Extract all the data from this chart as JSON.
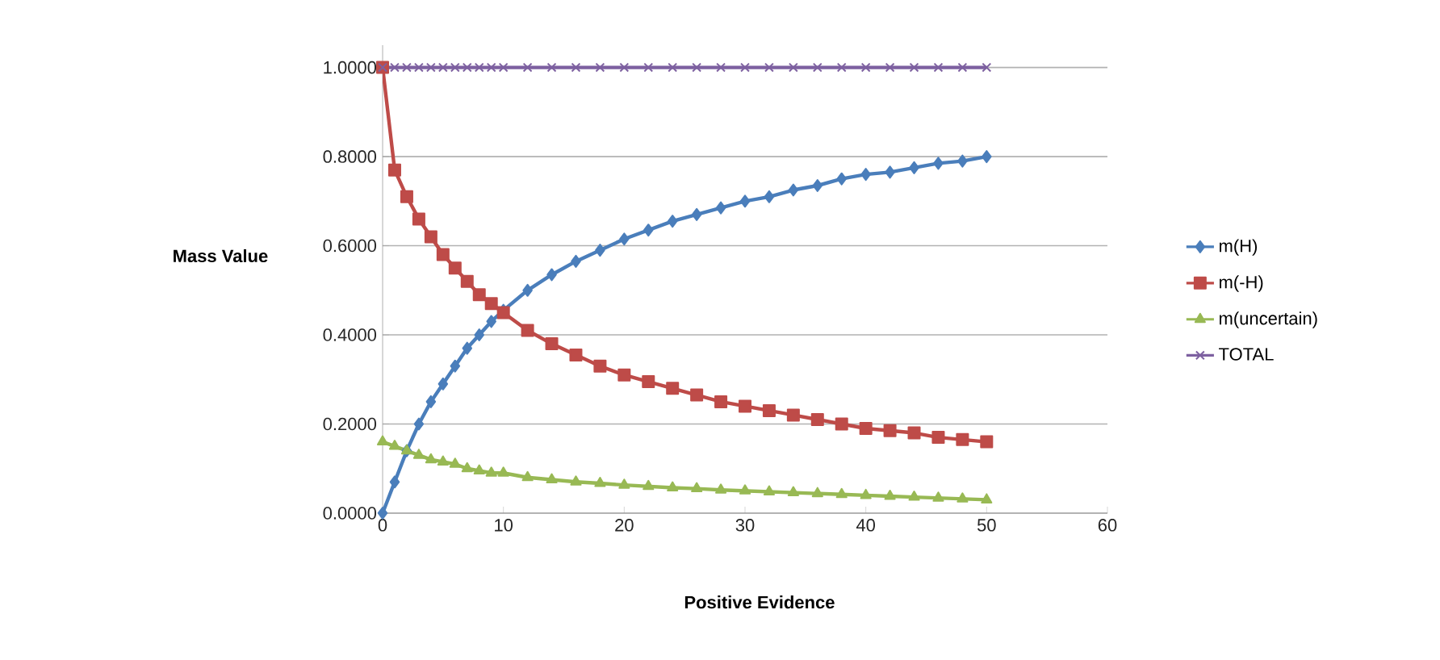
{
  "chart_data": {
    "type": "line",
    "xlabel": "Positive Evidence",
    "ylabel": "Mass Value",
    "x": [
      0,
      1,
      2,
      3,
      4,
      5,
      6,
      7,
      8,
      9,
      10,
      12,
      14,
      16,
      18,
      20,
      22,
      24,
      26,
      28,
      30,
      32,
      34,
      36,
      38,
      40,
      42,
      44,
      46,
      48,
      50
    ],
    "series": [
      {
        "name": "m(H)",
        "color": "#4a7ebb",
        "marker": "diamond",
        "values": [
          0,
          0.07,
          0.14,
          0.2,
          0.25,
          0.29,
          0.33,
          0.37,
          0.4,
          0.43,
          0.455,
          0.5,
          0.535,
          0.565,
          0.59,
          0.615,
          0.635,
          0.655,
          0.67,
          0.685,
          0.7,
          0.71,
          0.725,
          0.735,
          0.75,
          0.76,
          0.765,
          0.775,
          0.785,
          0.79,
          0.8
        ]
      },
      {
        "name": "m(-H)",
        "color": "#be4b48",
        "marker": "square",
        "values": [
          1,
          0.77,
          0.71,
          0.66,
          0.62,
          0.58,
          0.55,
          0.52,
          0.49,
          0.47,
          0.45,
          0.41,
          0.38,
          0.355,
          0.33,
          0.31,
          0.295,
          0.28,
          0.265,
          0.25,
          0.24,
          0.23,
          0.22,
          0.21,
          0.2,
          0.19,
          0.185,
          0.18,
          0.17,
          0.165,
          0.16
        ]
      },
      {
        "name": "m(uncertain)",
        "color": "#98b954",
        "marker": "triangle",
        "values": [
          0.16,
          0.15,
          0.14,
          0.13,
          0.12,
          0.115,
          0.11,
          0.1,
          0.095,
          0.09,
          0.09,
          0.08,
          0.075,
          0.07,
          0.067,
          0.063,
          0.06,
          0.057,
          0.055,
          0.052,
          0.05,
          0.048,
          0.046,
          0.044,
          0.042,
          0.04,
          0.038,
          0.036,
          0.034,
          0.032,
          0.03
        ]
      },
      {
        "name": "TOTAL",
        "color": "#7d60a0",
        "marker": "cross",
        "values": [
          1,
          1,
          1,
          1,
          1,
          1,
          1,
          1,
          1,
          1,
          1,
          1,
          1,
          1,
          1,
          1,
          1,
          1,
          1,
          1,
          1,
          1,
          1,
          1,
          1,
          1,
          1,
          1,
          1,
          1,
          1
        ]
      }
    ],
    "xlim": [
      0,
      60
    ],
    "xticks": [
      0,
      10,
      20,
      30,
      40,
      50,
      60
    ],
    "ylim": [
      0,
      1.05
    ],
    "yticks": [
      {
        "value": 0,
        "label": "0.0000"
      },
      {
        "value": 0.2,
        "label": "0.2000"
      },
      {
        "value": 0.4,
        "label": "0.4000"
      },
      {
        "value": 0.6,
        "label": "0.6000"
      },
      {
        "value": 0.8,
        "label": "0.8000"
      },
      {
        "value": 1,
        "label": "1.0000"
      }
    ],
    "grid": "y",
    "legend": "right",
    "line_style": "solid"
  }
}
